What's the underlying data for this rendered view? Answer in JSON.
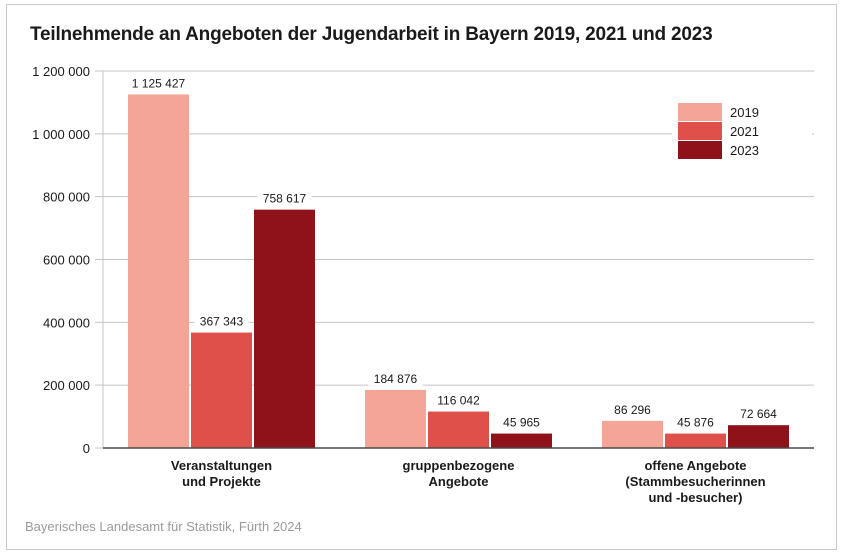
{
  "chart_data": {
    "type": "bar",
    "title": "Teilnehmende an Angeboten der Jugendarbeit in Bayern 2019, 2021 und 2023",
    "xlabel": "",
    "ylabel": "",
    "ylim": [
      0,
      1200000
    ],
    "yticks": [
      0,
      200000,
      400000,
      600000,
      800000,
      1000000,
      1200000
    ],
    "ytick_labels": [
      "0",
      "200 000",
      "400 000",
      "600 000",
      "800 000",
      "1 000 000",
      "1 200 000"
    ],
    "grid": true,
    "legend_position": "top-right",
    "categories": [
      [
        "Veranstaltungen",
        "und Projekte"
      ],
      [
        "gruppenbezogene",
        "Angebote"
      ],
      [
        "offene Angebote",
        "(Stammbesucherinnen",
        "und -besucher)"
      ]
    ],
    "series": [
      {
        "name": "2019",
        "color": "#f4a597",
        "values": [
          1125427,
          184876,
          86296
        ],
        "labels": [
          "1 125 427",
          "184 876",
          "86 296"
        ]
      },
      {
        "name": "2021",
        "color": "#e0504a",
        "values": [
          367343,
          116042,
          45876
        ],
        "labels": [
          "367 343",
          "116 042",
          "45 876"
        ]
      },
      {
        "name": "2023",
        "color": "#8f121a",
        "values": [
          758617,
          45965,
          72664
        ],
        "labels": [
          "758 617",
          "45 965",
          "72 664"
        ]
      }
    ]
  },
  "source": "Bayerisches Landesamt für Statistik, Fürth 2024"
}
